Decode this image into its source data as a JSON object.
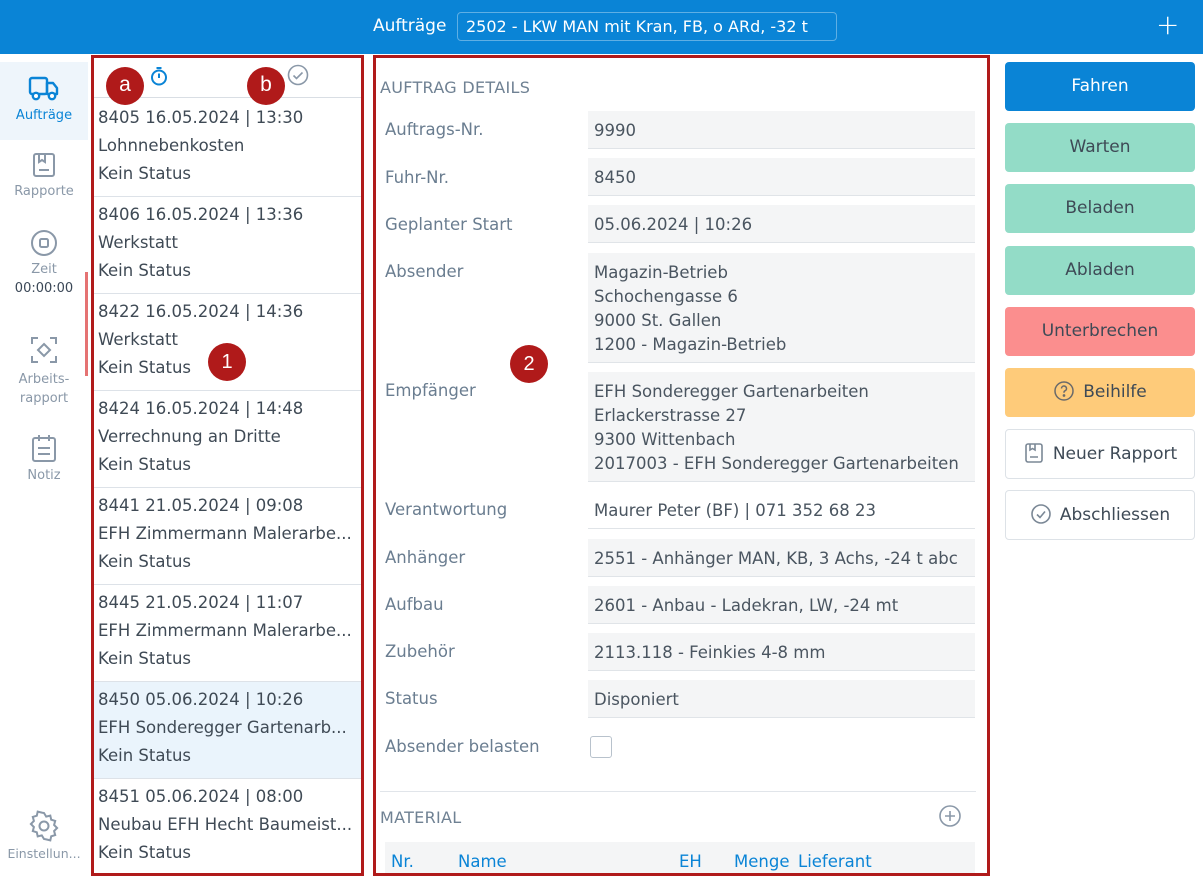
{
  "header": {
    "title": "Aufträge",
    "vehicle": "2502 - LKW MAN mit Kran, FB, o ARd, -32 t",
    "add_icon": "plus-icon"
  },
  "nav": {
    "items": [
      {
        "label": "Aufträge",
        "icon": "truck-icon"
      },
      {
        "label": "Rapporte",
        "icon": "report-icon"
      },
      {
        "label": "Zeit",
        "icon": "stop-circle-icon",
        "timer": "00:00:00"
      },
      {
        "label": "Arbeits-\nrapport",
        "label_line1": "Arbeits-",
        "label_line2": "rapport",
        "icon": "focus-icon"
      },
      {
        "label": "Notiz",
        "icon": "notes-icon"
      },
      {
        "label": "Einstellun...",
        "icon": "gear-icon"
      }
    ]
  },
  "list": {
    "header_icons": [
      "timer-icon",
      "check-circle-icon"
    ],
    "items": [
      {
        "line1": "8405  16.05.2024 | 13:30",
        "line2": "Lohnnebenkosten",
        "line3": "Kein Status"
      },
      {
        "line1": "8406  16.05.2024 | 13:36",
        "line2": "Werkstatt",
        "line3": "Kein Status"
      },
      {
        "line1": "8422  16.05.2024 | 14:36",
        "line2": "Werkstatt",
        "line3": "Kein Status"
      },
      {
        "line1": "8424  16.05.2024 | 14:48",
        "line2": "Verrechnung an Dritte",
        "line3": "Kein Status"
      },
      {
        "line1": "8441  21.05.2024 | 09:08",
        "line2": "EFH Zimmermann Malerarbe...",
        "line3": "Kein Status"
      },
      {
        "line1": "8445  21.05.2024 | 11:07",
        "line2": "EFH Zimmermann Malerarbe...",
        "line3": "Kein Status"
      },
      {
        "line1": "8450  05.06.2024 | 10:26",
        "line2": "EFH Sonderegger Gartenarb...",
        "line3": "Kein Status"
      },
      {
        "line1": "8451  05.06.2024 | 08:00",
        "line2": "Neubau EFH Hecht Baumeist...",
        "line3": "Kein Status"
      }
    ]
  },
  "details": {
    "section_title": "AUFTRAG DETAILS",
    "rows": [
      {
        "label": "Auftrags-Nr.",
        "value": "9990"
      },
      {
        "label": "Fuhr-Nr.",
        "value": "8450"
      },
      {
        "label": "Geplanter Start",
        "value": "05.06.2024 | 10:26"
      },
      {
        "label": "Absender",
        "lines": [
          "Magazin-Betrieb",
          "Schochengasse 6",
          "9000 St. Gallen",
          "1200 - Magazin-Betrieb"
        ]
      },
      {
        "label": "Empfänger",
        "lines": [
          "EFH Sonderegger Gartenarbeiten",
          "Erlackerstrasse 27",
          "9300 Wittenbach",
          "2017003 - EFH Sonderegger Gartenarbeiten"
        ]
      },
      {
        "label": "Verantwortung",
        "value": "Maurer Peter (BF) | 071 352 68 23"
      },
      {
        "label": "Anhänger",
        "value": "2551 - Anhänger MAN, KB, 3 Achs, -24 t abc"
      },
      {
        "label": "Aufbau",
        "value": "2601 - Anbau - Ladekran, LW, -24 mt"
      },
      {
        "label": "Zubehör",
        "value": "2113.118 - Feinkies 4-8 mm"
      },
      {
        "label": "Status",
        "value": "Disponiert"
      },
      {
        "label": "Absender belasten",
        "checked": false
      }
    ],
    "material": {
      "title": "MATERIAL",
      "columns": [
        "Nr.",
        "Name",
        "EH",
        "Menge",
        "Lieferant"
      ]
    }
  },
  "actions": {
    "fahren": "Fahren",
    "warten": "Warten",
    "beladen": "Beladen",
    "abladen": "Abladen",
    "unterbrechen": "Unterbrechen",
    "beihilfe": "Beihilfe",
    "neuer_rapport": "Neuer Rapport",
    "abschliessen": "Abschliessen"
  },
  "annotations": {
    "badge_1": "1",
    "badge_2": "2",
    "badge_a": "a",
    "badge_b": "b"
  },
  "colors": {
    "primary": "#0a84d6",
    "green": "#93dcc7",
    "red": "#fb8e8e",
    "yellow": "#fecb7a",
    "annotation": "#b01a1a"
  }
}
